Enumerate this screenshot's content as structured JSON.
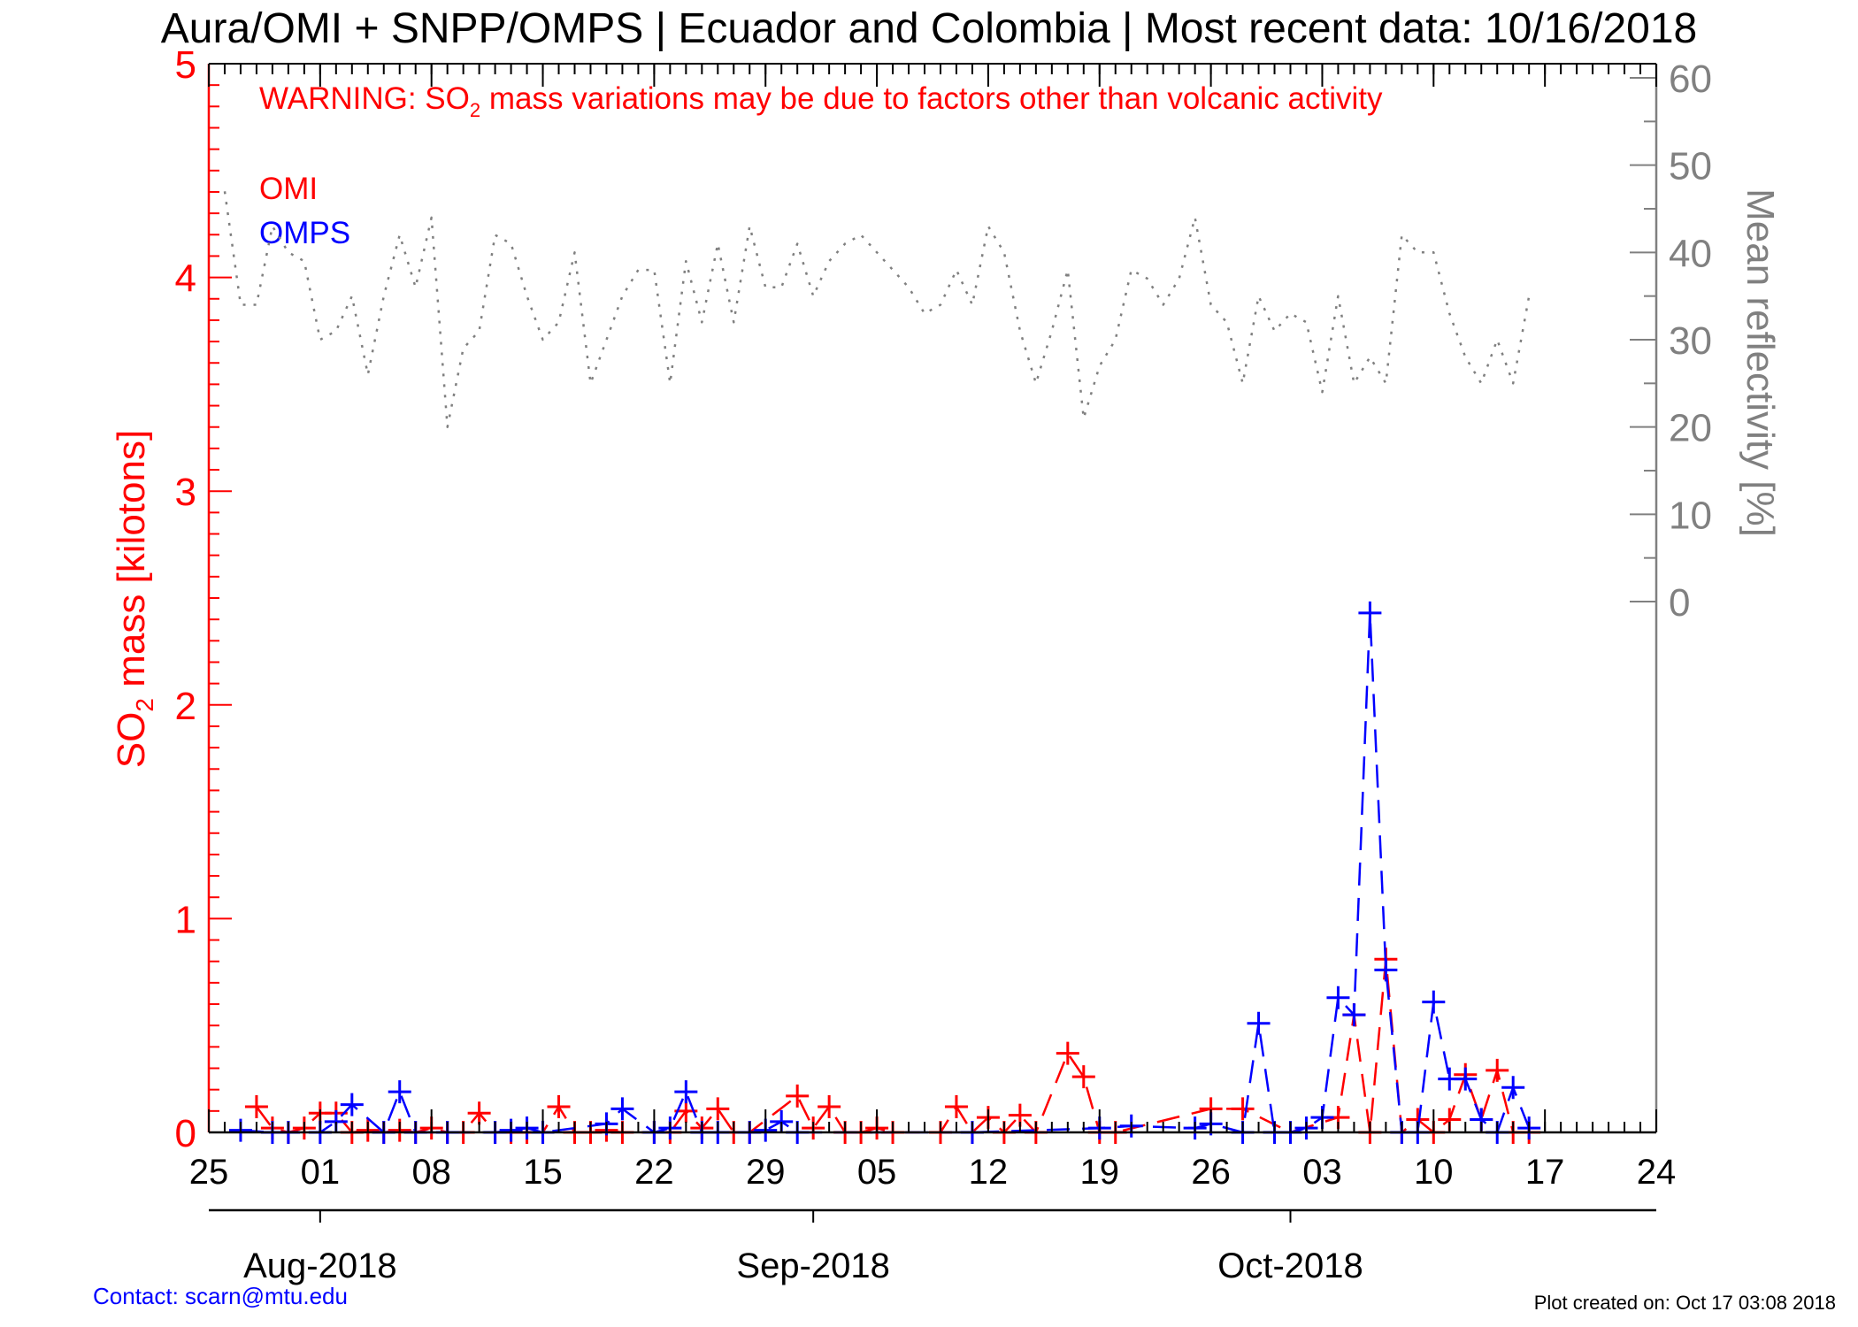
{
  "chart_data": {
    "type": "line",
    "title": "Aura/OMI + SNPP/OMPS | Ecuador and Colombia | Most recent data: 10/16/2018",
    "warning": {
      "prefix": "WARNING: SO",
      "subscript": "2",
      "suffix": " mass variations may be due to factors other than volcanic activity"
    },
    "ylabel": {
      "prefix": "SO",
      "subscript": "2",
      "suffix": " mass [kilotons]"
    },
    "ylabel_right": "Mean reflectivity [%]",
    "ylim": [
      0,
      5
    ],
    "yticks": [
      0,
      1,
      2,
      3,
      4,
      5
    ],
    "yticks_right": [
      0,
      10,
      20,
      30,
      40,
      50,
      60
    ],
    "xlim": [
      "2018-07-25",
      "2018-10-24"
    ],
    "xticks": [
      {
        "date": "2018-07-25",
        "label": "25"
      },
      {
        "date": "2018-08-01",
        "label": "01"
      },
      {
        "date": "2018-08-08",
        "label": "08"
      },
      {
        "date": "2018-08-15",
        "label": "15"
      },
      {
        "date": "2018-08-22",
        "label": "22"
      },
      {
        "date": "2018-08-29",
        "label": "29"
      },
      {
        "date": "2018-09-05",
        "label": "05"
      },
      {
        "date": "2018-09-12",
        "label": "12"
      },
      {
        "date": "2018-09-19",
        "label": "19"
      },
      {
        "date": "2018-09-26",
        "label": "26"
      },
      {
        "date": "2018-10-03",
        "label": "03"
      },
      {
        "date": "2018-10-10",
        "label": "10"
      },
      {
        "date": "2018-10-17",
        "label": "17"
      },
      {
        "date": "2018-10-24",
        "label": "24"
      }
    ],
    "months": [
      {
        "date": "2018-08-01",
        "label": "Aug-2018"
      },
      {
        "date": "2018-09-01",
        "label": "Sep-2018"
      },
      {
        "date": "2018-10-01",
        "label": "Oct-2018"
      }
    ],
    "grid": false,
    "legend_position": "top-left",
    "series": [
      {
        "name": "OMI",
        "color": "#ff0000",
        "dates": [
          "2018-07-28",
          "2018-07-29",
          "2018-07-30",
          "2018-07-31",
          "2018-08-01",
          "2018-08-02",
          "2018-08-03",
          "2018-08-04",
          "2018-08-05",
          "2018-08-06",
          "2018-08-07",
          "2018-08-08",
          "2018-08-09",
          "2018-08-10",
          "2018-08-11",
          "2018-08-12",
          "2018-08-13",
          "2018-08-14",
          "2018-08-15",
          "2018-08-16",
          "2018-08-17",
          "2018-08-18",
          "2018-08-19",
          "2018-08-20",
          "2018-08-22",
          "2018-08-23",
          "2018-08-24",
          "2018-08-25",
          "2018-08-26",
          "2018-08-27",
          "2018-08-28",
          "2018-08-31",
          "2018-09-01",
          "2018-09-02",
          "2018-09-03",
          "2018-09-04",
          "2018-09-05",
          "2018-09-06",
          "2018-09-09",
          "2018-09-10",
          "2018-09-11",
          "2018-09-12",
          "2018-09-13",
          "2018-09-14",
          "2018-09-15",
          "2018-09-17",
          "2018-09-18",
          "2018-09-19",
          "2018-09-20",
          "2018-09-26",
          "2018-09-28",
          "2018-10-01",
          "2018-10-04",
          "2018-10-05",
          "2018-10-06",
          "2018-10-07",
          "2018-10-08",
          "2018-10-09",
          "2018-10-10",
          "2018-10-11",
          "2018-10-12",
          "2018-10-13",
          "2018-10-14",
          "2018-10-15",
          "2018-10-16"
        ],
        "values": [
          0.12,
          0.02,
          0.0,
          0.02,
          0.09,
          0.09,
          0.0,
          0.01,
          0.0,
          0.01,
          0.0,
          0.02,
          0.0,
          0.0,
          0.09,
          0.0,
          0.0,
          0.0,
          0.0,
          0.12,
          0.0,
          0.0,
          0.01,
          0.0,
          0.0,
          0.0,
          0.1,
          0.02,
          0.11,
          0.0,
          0.0,
          0.17,
          0.02,
          0.12,
          0.0,
          0.0,
          0.02,
          0.0,
          0.0,
          0.12,
          0.0,
          0.07,
          0.0,
          0.08,
          0.0,
          0.37,
          0.26,
          0.0,
          0.0,
          0.11,
          0.11,
          0.0,
          0.07,
          0.55,
          0.0,
          0.81,
          0.0,
          0.06,
          0.0,
          0.06,
          0.27,
          0.06,
          0.29,
          0.0,
          0.0
        ]
      },
      {
        "name": "OMPS",
        "color": "#0000ff",
        "dates": [
          "2018-07-27",
          "2018-07-29",
          "2018-07-30",
          "2018-08-01",
          "2018-08-02",
          "2018-08-03",
          "2018-08-05",
          "2018-08-06",
          "2018-08-07",
          "2018-08-09",
          "2018-08-12",
          "2018-08-13",
          "2018-08-14",
          "2018-08-15",
          "2018-08-19",
          "2018-08-20",
          "2018-08-22",
          "2018-08-23",
          "2018-08-24",
          "2018-08-25",
          "2018-08-26",
          "2018-08-28",
          "2018-08-29",
          "2018-08-30",
          "2018-08-31",
          "2018-09-11",
          "2018-09-19",
          "2018-09-21",
          "2018-09-25",
          "2018-09-26",
          "2018-09-28",
          "2018-09-29",
          "2018-09-30",
          "2018-10-01",
          "2018-10-02",
          "2018-10-03",
          "2018-10-04",
          "2018-10-05",
          "2018-10-06",
          "2018-10-07",
          "2018-10-08",
          "2018-10-09",
          "2018-10-10",
          "2018-10-11",
          "2018-10-12",
          "2018-10-13",
          "2018-10-14",
          "2018-10-15",
          "2018-10-16"
        ],
        "values": [
          0.01,
          0.0,
          0.0,
          0.0,
          0.05,
          0.13,
          0.0,
          0.19,
          0.0,
          0.0,
          0.0,
          0.01,
          0.02,
          0.0,
          0.04,
          0.11,
          0.0,
          0.02,
          0.19,
          0.0,
          0.0,
          0.0,
          0.01,
          0.05,
          0.0,
          0.0,
          0.02,
          0.03,
          0.02,
          0.04,
          0.0,
          0.51,
          0.0,
          0.0,
          0.02,
          0.07,
          0.63,
          0.55,
          2.43,
          0.76,
          0.0,
          0.0,
          0.61,
          0.25,
          0.25,
          0.06,
          0.0,
          0.21,
          0.02
        ]
      },
      {
        "name": "Mean reflectivity",
        "color": "#808080",
        "axis": "right",
        "dates": [
          "2018-07-26",
          "2018-07-27",
          "2018-07-28",
          "2018-07-29",
          "2018-07-30",
          "2018-07-31",
          "2018-08-01",
          "2018-08-02",
          "2018-08-03",
          "2018-08-04",
          "2018-08-05",
          "2018-08-06",
          "2018-08-07",
          "2018-08-08",
          "2018-08-09",
          "2018-08-10",
          "2018-08-11",
          "2018-08-12",
          "2018-08-13",
          "2018-08-14",
          "2018-08-15",
          "2018-08-16",
          "2018-08-17",
          "2018-08-18",
          "2018-08-19",
          "2018-08-20",
          "2018-08-21",
          "2018-08-22",
          "2018-08-23",
          "2018-08-24",
          "2018-08-25",
          "2018-08-26",
          "2018-08-27",
          "2018-08-28",
          "2018-08-29",
          "2018-08-30",
          "2018-08-31",
          "2018-09-01",
          "2018-09-02",
          "2018-09-03",
          "2018-09-04",
          "2018-09-05",
          "2018-09-06",
          "2018-09-07",
          "2018-09-08",
          "2018-09-09",
          "2018-09-10",
          "2018-09-11",
          "2018-09-12",
          "2018-09-13",
          "2018-09-14",
          "2018-09-15",
          "2018-09-16",
          "2018-09-17",
          "2018-09-18",
          "2018-09-19",
          "2018-09-20",
          "2018-09-21",
          "2018-09-22",
          "2018-09-23",
          "2018-09-24",
          "2018-09-25",
          "2018-09-26",
          "2018-09-27",
          "2018-09-28",
          "2018-09-29",
          "2018-09-30",
          "2018-10-01",
          "2018-10-02",
          "2018-10-03",
          "2018-10-04",
          "2018-10-05",
          "2018-10-06",
          "2018-10-07",
          "2018-10-08",
          "2018-10-09",
          "2018-10-10",
          "2018-10-11",
          "2018-10-12",
          "2018-10-13",
          "2018-10-14",
          "2018-10-15",
          "2018-10-16"
        ],
        "values": [
          47,
          34,
          34,
          43,
          40,
          39,
          30,
          31,
          35,
          26,
          35,
          42,
          36,
          44,
          20,
          29,
          31,
          42,
          41,
          35,
          30,
          32,
          40,
          25,
          30,
          35,
          38,
          38,
          25,
          39,
          32,
          41,
          32,
          43,
          36,
          36,
          41,
          35,
          39,
          41,
          42,
          40,
          38,
          36,
          33,
          34,
          38,
          34,
          43,
          40,
          31,
          25,
          31,
          38,
          21,
          27,
          30,
          38,
          37,
          34,
          37,
          44,
          34,
          32,
          25,
          35,
          31,
          33,
          32,
          24,
          35,
          25,
          28,
          25,
          42,
          40,
          40,
          33,
          28,
          25,
          30,
          25,
          35
        ]
      }
    ]
  },
  "footer": {
    "contact": "Contact: scarn@mtu.edu",
    "created": "Plot created on: Oct 17 03:08 2018"
  },
  "colors": {
    "omi": "#ff0000",
    "omps": "#0000ff",
    "reflectivity": "#808080",
    "axis_left": "#ff0000",
    "axis_right": "#808080"
  }
}
